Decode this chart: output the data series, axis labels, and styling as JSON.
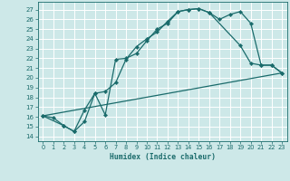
{
  "xlabel": "Humidex (Indice chaleur)",
  "bg_color": "#cde8e8",
  "grid_color": "#ffffff",
  "line_color": "#1a6b6b",
  "xlim": [
    -0.5,
    23.5
  ],
  "ylim": [
    13.5,
    27.8
  ],
  "yticks": [
    14,
    15,
    16,
    17,
    18,
    19,
    20,
    21,
    22,
    23,
    24,
    25,
    26,
    27
  ],
  "xticks": [
    0,
    1,
    2,
    3,
    4,
    5,
    6,
    7,
    8,
    9,
    10,
    11,
    12,
    13,
    14,
    15,
    16,
    17,
    18,
    19,
    20,
    21,
    22,
    23
  ],
  "line1_x": [
    0,
    1,
    2,
    3,
    4,
    5,
    6,
    7,
    8,
    9,
    10,
    11,
    12,
    13,
    14,
    15,
    16,
    17,
    18,
    19,
    20,
    21,
    22,
    23
  ],
  "line1_y": [
    16.1,
    15.9,
    15.1,
    14.5,
    15.5,
    18.4,
    18.6,
    19.5,
    21.9,
    23.2,
    24.0,
    24.7,
    25.8,
    26.8,
    27.0,
    27.1,
    26.7,
    26.0,
    26.5,
    26.8,
    25.6,
    21.3,
    21.3,
    20.5
  ],
  "line2_x": [
    0,
    2,
    3,
    4,
    5,
    6,
    7,
    8,
    9,
    10,
    11,
    12,
    13,
    14,
    15,
    16,
    19,
    20,
    21,
    22,
    23
  ],
  "line2_y": [
    16.1,
    15.1,
    14.5,
    16.7,
    18.4,
    16.2,
    21.9,
    22.0,
    22.5,
    23.8,
    25.0,
    25.6,
    26.8,
    27.0,
    27.1,
    26.7,
    23.3,
    21.5,
    21.3,
    21.3,
    20.5
  ],
  "line3_x": [
    0,
    23
  ],
  "line3_y": [
    16.1,
    20.5
  ]
}
